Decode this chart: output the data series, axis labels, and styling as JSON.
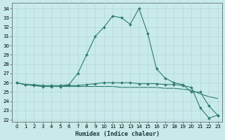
{
  "xlabel": "Humidex (Indice chaleur)",
  "background_color": "#c8eaea",
  "grid_color": "#b0d8d8",
  "line_color": "#2e7d6e",
  "xlim": [
    -0.5,
    23.5
  ],
  "ylim": [
    21.8,
    34.6
  ],
  "xticks": [
    0,
    1,
    2,
    3,
    4,
    5,
    6,
    7,
    8,
    9,
    10,
    11,
    12,
    13,
    14,
    15,
    16,
    17,
    18,
    19,
    20,
    21,
    22,
    23
  ],
  "yticks": [
    22,
    23,
    24,
    25,
    26,
    27,
    28,
    29,
    30,
    31,
    32,
    33,
    34
  ],
  "line1_x": [
    0,
    1,
    2,
    3,
    4,
    5,
    6,
    7,
    8,
    9,
    10,
    11,
    12,
    13,
    14,
    15,
    16,
    17,
    18,
    19,
    20,
    21,
    22,
    23
  ],
  "line1_y": [
    26.0,
    25.8,
    25.8,
    25.7,
    25.7,
    25.7,
    25.8,
    27.0,
    29.0,
    31.0,
    32.0,
    33.2,
    33.0,
    32.3,
    34.0,
    31.3,
    27.5,
    26.5,
    26.0,
    25.8,
    25.0,
    25.0,
    23.5,
    22.5
  ],
  "line2_x": [
    0,
    1,
    2,
    3,
    4,
    5,
    6,
    7,
    8,
    9,
    10,
    11,
    12,
    13,
    14,
    15,
    16,
    17,
    18,
    19,
    20,
    21,
    22,
    23
  ],
  "line2_y": [
    26.0,
    25.8,
    25.7,
    25.6,
    25.6,
    25.6,
    25.6,
    25.6,
    25.6,
    25.6,
    25.6,
    25.6,
    25.5,
    25.5,
    25.5,
    25.5,
    25.5,
    25.4,
    25.4,
    25.3,
    25.2,
    24.8,
    24.5,
    24.3
  ],
  "line3_x": [
    0,
    1,
    2,
    3,
    4,
    5,
    6,
    7,
    8,
    9,
    10,
    11,
    12,
    13,
    14,
    15,
    16,
    17,
    18,
    19,
    20,
    21,
    22,
    23
  ],
  "line3_y": [
    26.0,
    25.8,
    25.7,
    25.6,
    25.6,
    25.6,
    25.7,
    25.7,
    25.8,
    25.9,
    26.0,
    26.0,
    26.0,
    26.0,
    25.9,
    25.9,
    25.9,
    25.8,
    25.8,
    25.7,
    25.5,
    23.3,
    22.2,
    22.5
  ],
  "markersize": 2.0,
  "linewidth": 0.8,
  "tick_fontsize": 5.0,
  "xlabel_fontsize": 6.0
}
